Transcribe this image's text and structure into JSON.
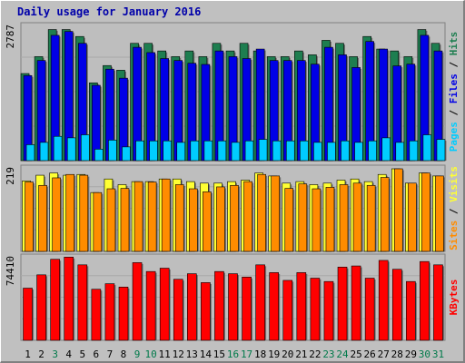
{
  "title": "Daily usage for January 2016",
  "colors": {
    "panel_bg": "#bebebe",
    "hits": "#1e7e50",
    "files": "#0000e6",
    "pages": "#00ccff",
    "visits": "#ffff33",
    "sites": "#ff8c00",
    "kbytes": "#ff0000",
    "label_dark": "#003c88",
    "label_weekend": "#007a4a"
  },
  "chart_data": [
    {
      "type": "bar",
      "panel": "hits-files-pages",
      "scale_max_label": "2787",
      "ylim": [
        0,
        2787
      ],
      "legend": {
        "pages": "Pages",
        "sep1": " / ",
        "files": "Files",
        "sep2": " / ",
        "hits": "Hits"
      },
      "categories": [
        "1",
        "2",
        "3",
        "4",
        "5",
        "6",
        "7",
        "8",
        "9",
        "10",
        "11",
        "12",
        "13",
        "14",
        "15",
        "16",
        "17",
        "18",
        "19",
        "20",
        "21",
        "22",
        "23",
        "24",
        "25",
        "26",
        "27",
        "28",
        "29",
        "30",
        "31"
      ],
      "series": [
        {
          "name": "Hits",
          "values": [
            1807,
            2158,
            2720,
            2720,
            2576,
            1614,
            1973,
            1876,
            2434,
            2434,
            2276,
            2158,
            2276,
            2158,
            2434,
            2276,
            2434,
            2276,
            2158,
            2158,
            2276,
            2196,
            2496,
            2434,
            2158,
            2576,
            2315,
            2276,
            2158,
            2720,
            2434
          ]
        },
        {
          "name": "Files",
          "values": [
            1765,
            2078,
            2600,
            2680,
            2434,
            1563,
            1898,
            1711,
            2352,
            2242,
            2118,
            2078,
            2021,
            1996,
            2276,
            2158,
            2118,
            2315,
            2078,
            2078,
            2078,
            2001,
            2352,
            2196,
            1932,
            2473,
            2315,
            1966,
            2002,
            2600,
            2276
          ]
        },
        {
          "name": "Pages",
          "values": [
            331,
            379,
            504,
            473,
            536,
            238,
            426,
            285,
            410,
            410,
            410,
            379,
            410,
            410,
            410,
            379,
            410,
            441,
            410,
            410,
            410,
            379,
            379,
            410,
            379,
            410,
            473,
            379,
            410,
            536,
            441
          ]
        }
      ]
    },
    {
      "type": "bar",
      "panel": "visits-sites",
      "scale_max_label": "219",
      "ylim": [
        0,
        219
      ],
      "legend": {
        "sites": "Sites",
        "sep": " / ",
        "visits": "Visits"
      },
      "categories": [
        "1",
        "2",
        "3",
        "4",
        "5",
        "6",
        "7",
        "8",
        "9",
        "10",
        "11",
        "12",
        "13",
        "14",
        "15",
        "16",
        "17",
        "18",
        "19",
        "20",
        "21",
        "22",
        "23",
        "24",
        "25",
        "26",
        "27",
        "28",
        "29",
        "30",
        "31"
      ],
      "series": [
        {
          "name": "Visits",
          "values": [
            187,
            202,
            208,
            202,
            204,
            156,
            192,
            177,
            185,
            185,
            192,
            192,
            185,
            181,
            181,
            185,
            189,
            208,
            200,
            181,
            185,
            177,
            181,
            189,
            192,
            185,
            204,
            219,
            181,
            208,
            200
          ]
        },
        {
          "name": "Sites",
          "values": [
            184,
            175,
            195,
            204,
            202,
            156,
            166,
            167,
            185,
            184,
            192,
            177,
            166,
            158,
            171,
            175,
            185,
            204,
            200,
            167,
            179,
            166,
            170,
            177,
            181,
            175,
            196,
            219,
            181,
            208,
            200
          ]
        }
      ]
    },
    {
      "type": "bar",
      "panel": "kbytes",
      "scale_max_label": "74410",
      "ylim": [
        0,
        74410
      ],
      "legend": {
        "kbytes": "KBytes"
      },
      "categories": [
        "1",
        "2",
        "3",
        "4",
        "5",
        "6",
        "7",
        "8",
        "9",
        "10",
        "11",
        "12",
        "13",
        "14",
        "15",
        "16",
        "17",
        "18",
        "19",
        "20",
        "21",
        "22",
        "23",
        "24",
        "25",
        "26",
        "27",
        "28",
        "29",
        "30",
        "31"
      ],
      "series": [
        {
          "name": "KBytes",
          "values": [
            47000,
            59000,
            73000,
            75000,
            68000,
            46000,
            51000,
            48000,
            70000,
            62000,
            65000,
            55000,
            60000,
            52000,
            62000,
            60000,
            57000,
            68000,
            61000,
            54000,
            61000,
            56000,
            53000,
            66000,
            67000,
            56000,
            72000,
            64000,
            53000,
            71000,
            68000
          ]
        }
      ]
    }
  ],
  "weekend_days": [
    "3",
    "9",
    "10",
    "16",
    "17",
    "23",
    "24",
    "30",
    "31"
  ]
}
